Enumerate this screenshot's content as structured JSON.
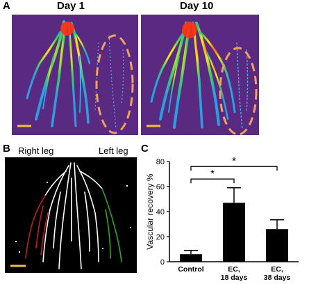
{
  "panel_a": {
    "letter": "A",
    "day1_title": "Day 1",
    "day10_title": "Day 10"
  },
  "panel_b": {
    "letter": "B",
    "right_leg": "Right leg",
    "left_leg": "Left leg"
  },
  "panel_c": {
    "letter": "C"
  },
  "colors": {
    "heatmap_background": "#5a2a82",
    "ellipse": "#f0a060",
    "scale_bar": "#f2c040",
    "vessel_white": "#ffffff",
    "vessel_red": "#c0201a",
    "vessel_green": "#2aa82a",
    "bar_fill": "#000000"
  },
  "chart_data": {
    "type": "bar",
    "title": "",
    "xlabel": "",
    "ylabel": "Vascular recovery %",
    "ylim": [
      0,
      80
    ],
    "yticks": [
      0,
      20,
      40,
      60,
      80
    ],
    "categories": [
      "Control",
      "EC,\n18 days",
      "EC,\n38 days"
    ],
    "category_lines": [
      [
        "Control"
      ],
      [
        "EC,",
        "18 days"
      ],
      [
        "EC,",
        "38 days"
      ]
    ],
    "values": [
      6,
      47,
      26
    ],
    "errors": [
      3,
      12,
      7.5
    ],
    "significance": [
      {
        "from": 0,
        "to": 1,
        "label": "*"
      },
      {
        "from": 0,
        "to": 2,
        "label": "*"
      }
    ]
  }
}
